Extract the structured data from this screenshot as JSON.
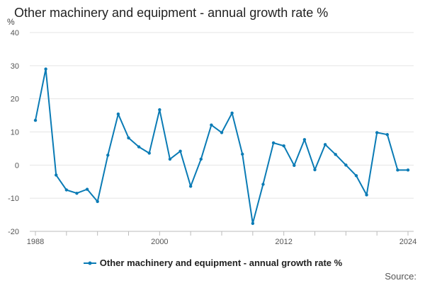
{
  "chart_data": {
    "type": "line",
    "title": "Other machinery and equipment - annual growth rate %",
    "ylabel": "%",
    "xlabel": "",
    "ylim": [
      -20,
      40
    ],
    "yticks": [
      -20,
      -10,
      0,
      10,
      20,
      30,
      40
    ],
    "xlim": [
      1988,
      2024
    ],
    "xtick_labels": [
      1988,
      2000,
      2012,
      2024
    ],
    "xtick_marks": [
      1988,
      1991,
      1994,
      1997,
      2000,
      2003,
      2006,
      2009,
      2012,
      2015,
      2018,
      2021,
      2024
    ],
    "grid": true,
    "legend_position": "bottom-center",
    "series": [
      {
        "name": "Other machinery and equipment - annual growth rate %",
        "color": "#0a7bb5",
        "x": [
          1988,
          1989,
          1990,
          1991,
          1992,
          1993,
          1994,
          1995,
          1996,
          1997,
          1998,
          1999,
          2000,
          2001,
          2002,
          2003,
          2004,
          2005,
          2006,
          2007,
          2008,
          2009,
          2010,
          2011,
          2012,
          2013,
          2014,
          2015,
          2016,
          2017,
          2018,
          2019,
          2020,
          2021,
          2022,
          2023,
          2024
        ],
        "values": [
          13.5,
          29,
          -3,
          -7.5,
          -8.5,
          -7.3,
          -11,
          3,
          15.4,
          8.2,
          5.5,
          3.6,
          16.7,
          1.8,
          4.2,
          -6.4,
          1.8,
          12.1,
          9.8,
          15.7,
          3.3,
          -17.6,
          -5.8,
          6.7,
          5.8,
          -0.1,
          7.7,
          -1.4,
          6.2,
          3.2,
          0,
          -3.2,
          -9,
          9.8,
          9.2,
          -1.5,
          -1.5
        ]
      }
    ]
  },
  "source_label": "Source:"
}
